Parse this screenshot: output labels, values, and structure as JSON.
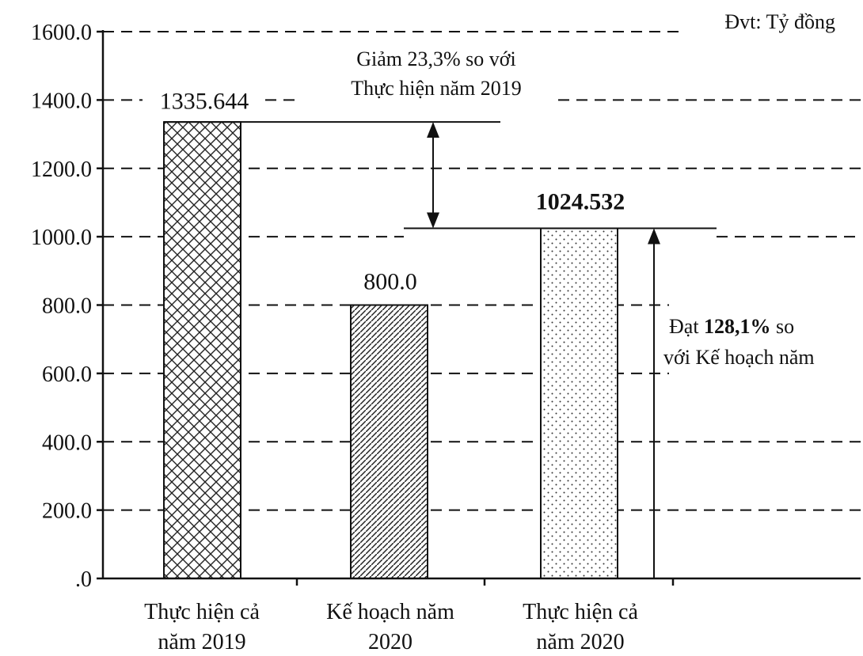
{
  "chart_data": {
    "type": "bar",
    "unit": "Đvt: Tỷ đồng",
    "categories": [
      [
        "Thực hiện cả",
        "năm 2019"
      ],
      [
        "Kế hoạch năm",
        "2020"
      ],
      [
        "Thực hiện cả",
        "năm 2020"
      ]
    ],
    "values": [
      1335.644,
      800.0,
      1024.532
    ],
    "value_labels": [
      "1335.644",
      "800.0",
      "1024.532"
    ],
    "value_label_bold": [
      false,
      false,
      true
    ],
    "patterns": [
      "crosshatch",
      "diagonal",
      "dots"
    ],
    "yticks": [
      0,
      200,
      400,
      600,
      800,
      1000,
      1200,
      1400,
      1600
    ],
    "ytick_labels": [
      ".0",
      "200.0",
      "400.0",
      "600.0",
      "800.0",
      "1000.0",
      "1200.0",
      "1400.0",
      "1600.0"
    ],
    "ylim": [
      0,
      1600
    ],
    "grid": "dashed",
    "annotations": {
      "decrease": {
        "line1": "Giảm 23,3% so với",
        "line2": "Thực hiện năm 2019"
      },
      "achieve": {
        "pre": "Đạt ",
        "bold": "128,1%",
        "post": " so",
        "line2": "với Kế hoạch năm"
      }
    }
  }
}
